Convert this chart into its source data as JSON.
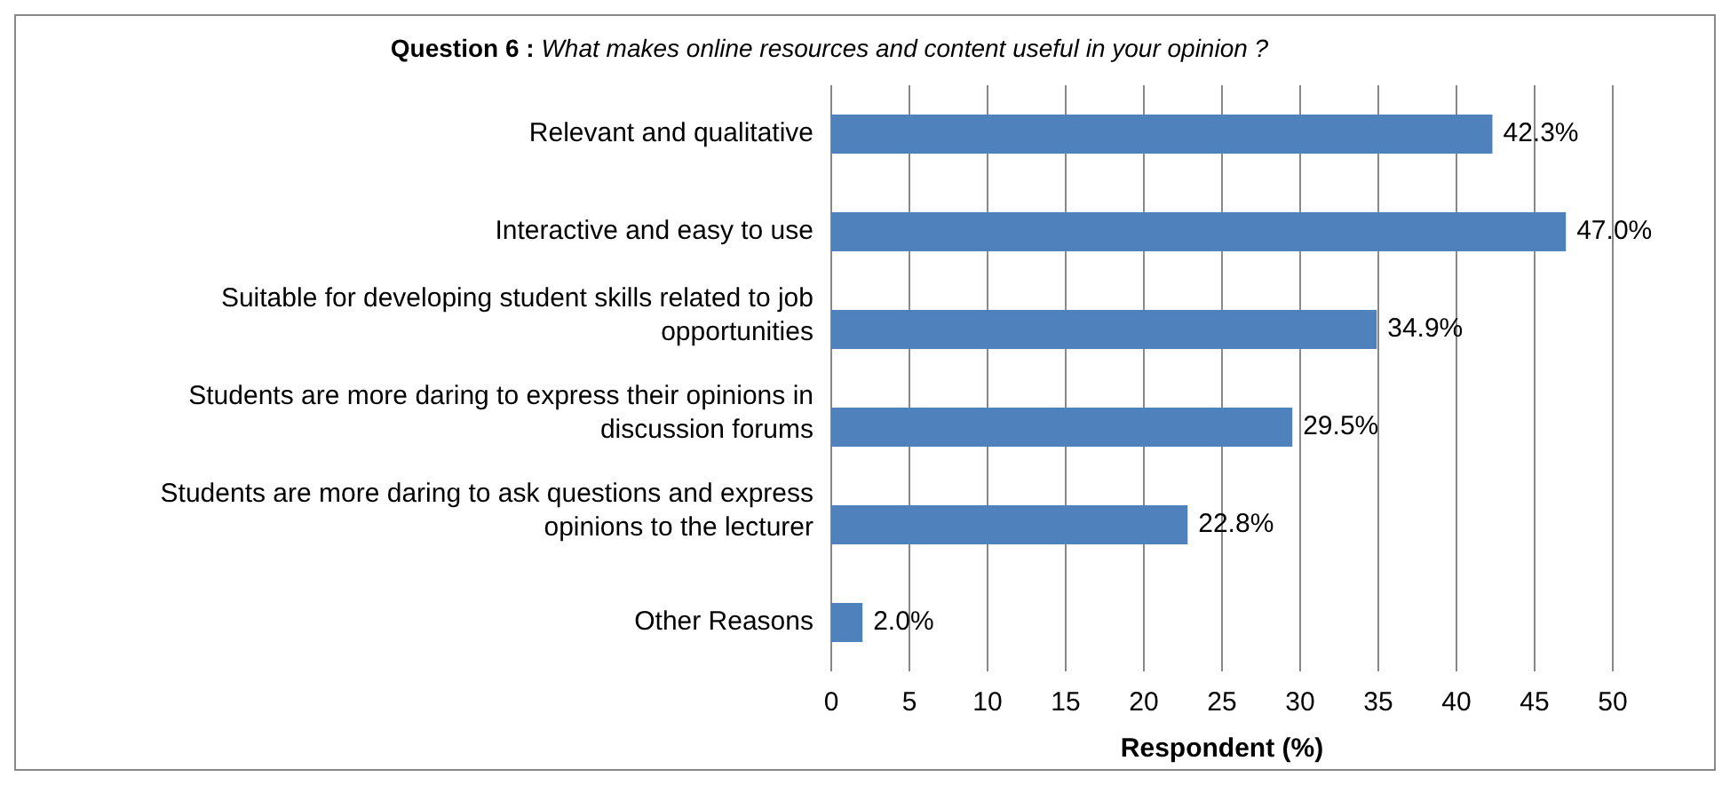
{
  "chart_data": {
    "type": "bar",
    "orientation": "horizontal",
    "title": "Question 6 : What makes online resources and content useful in your opinion ?",
    "xlabel": "Respondent (%)",
    "categories": [
      "Relevant and qualitative",
      "Interactive and easy to use",
      "Suitable for developing student skills related to job opportunities",
      "Students are more daring to express their opinions in discussion forums",
      "Students are more daring to ask questions and express opinions to the lecturer",
      "Other Reasons"
    ],
    "values": [
      42.3,
      47.0,
      34.9,
      29.5,
      22.8,
      2.0
    ],
    "value_labels": [
      "42.3%",
      "47.0%",
      "34.9%",
      "29.5%",
      "22.8%",
      "2.0%"
    ],
    "color": "#4f81bd",
    "xlim": [
      0,
      50
    ],
    "xticks": [
      0,
      5,
      10,
      15,
      20,
      25,
      30,
      35,
      40,
      45,
      50
    ],
    "grid": "x"
  }
}
